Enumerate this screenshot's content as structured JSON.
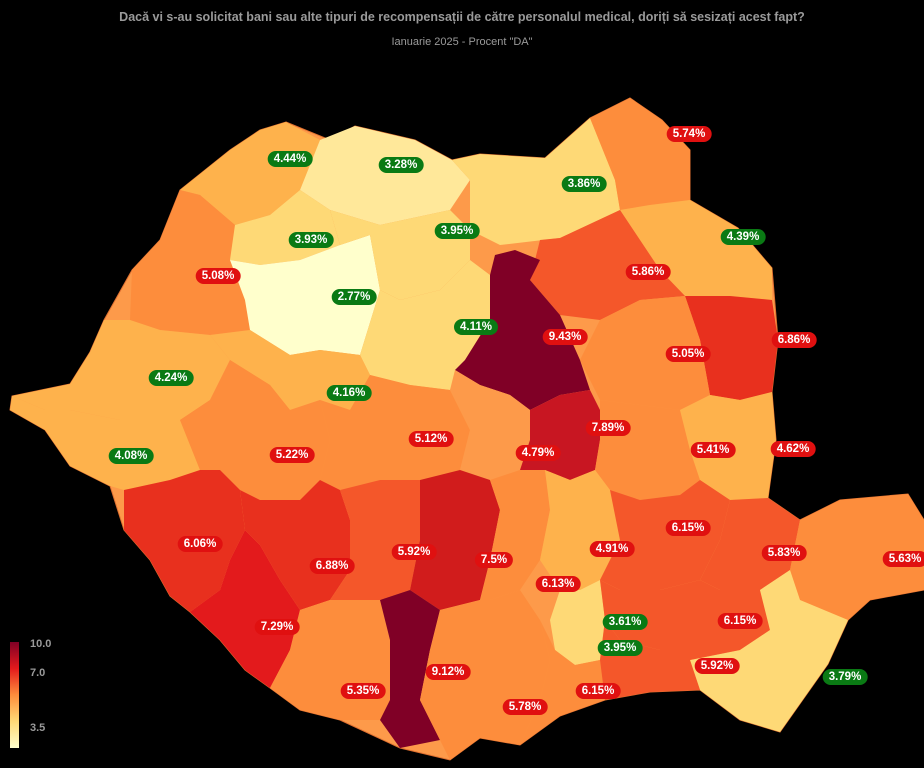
{
  "title": "Dacă vi s-au solicitat bani sau alte tipuri de recompensații de către personalul medical, doriți să sesizați acest fapt?",
  "subtitle": "Ianuarie 2025 - Procent \"DA\"",
  "legend": {
    "max": "10.0",
    "mid": "7.0",
    "min": "3.5"
  },
  "colors": {
    "low": "#ffffcc",
    "mid": "#fd8d3c",
    "high": "#800026",
    "green_badge": "#0a7a14",
    "red_badge": "#e01010"
  },
  "chart_data": {
    "type": "choropleth",
    "scale_range": [
      3.5,
      10.0
    ],
    "values": [
      {
        "label": "4.44%",
        "value": 4.44
      },
      {
        "label": "3.28%",
        "value": 3.28
      },
      {
        "label": "3.86%",
        "value": 3.86
      },
      {
        "label": "5.74%",
        "value": 5.74
      },
      {
        "label": "3.93%",
        "value": 3.93
      },
      {
        "label": "3.95%",
        "value": 3.95
      },
      {
        "label": "4.39%",
        "value": 4.39
      },
      {
        "label": "5.08%",
        "value": 5.08
      },
      {
        "label": "2.77%",
        "value": 2.77
      },
      {
        "label": "5.86%",
        "value": 5.86
      },
      {
        "label": "4.11%",
        "value": 4.11
      },
      {
        "label": "9.43%",
        "value": 9.43
      },
      {
        "label": "6.86%",
        "value": 6.86
      },
      {
        "label": "5.05%",
        "value": 5.05
      },
      {
        "label": "4.24%",
        "value": 4.24
      },
      {
        "label": "4.16%",
        "value": 4.16
      },
      {
        "label": "7.89%",
        "value": 7.89
      },
      {
        "label": "5.12%",
        "value": 5.12
      },
      {
        "label": "4.79%",
        "value": 4.79
      },
      {
        "label": "5.41%",
        "value": 5.41
      },
      {
        "label": "4.62%",
        "value": 4.62
      },
      {
        "label": "4.08%",
        "value": 4.08
      },
      {
        "label": "5.22%",
        "value": 5.22
      },
      {
        "label": "6.06%",
        "value": 6.06
      },
      {
        "label": "6.88%",
        "value": 6.88
      },
      {
        "label": "5.92%",
        "value": 5.92
      },
      {
        "label": "7.5%",
        "value": 7.5
      },
      {
        "label": "4.91%",
        "value": 4.91
      },
      {
        "label": "6.15%",
        "value": 6.15
      },
      {
        "label": "5.83%",
        "value": 5.83
      },
      {
        "label": "5.63%",
        "value": 5.63
      },
      {
        "label": "6.13%",
        "value": 6.13
      },
      {
        "label": "3.61%",
        "value": 3.61
      },
      {
        "label": "6.15%",
        "value": 6.15
      },
      {
        "label": "7.29%",
        "value": 7.29
      },
      {
        "label": "3.95%",
        "value": 3.95
      },
      {
        "label": "9.12%",
        "value": 9.12
      },
      {
        "label": "5.92%",
        "value": 5.92
      },
      {
        "label": "3.79%",
        "value": 3.79
      },
      {
        "label": "5.35%",
        "value": 5.35
      },
      {
        "label": "5.78%",
        "value": 5.78
      },
      {
        "label": "6.15%",
        "value": 6.15
      }
    ]
  }
}
